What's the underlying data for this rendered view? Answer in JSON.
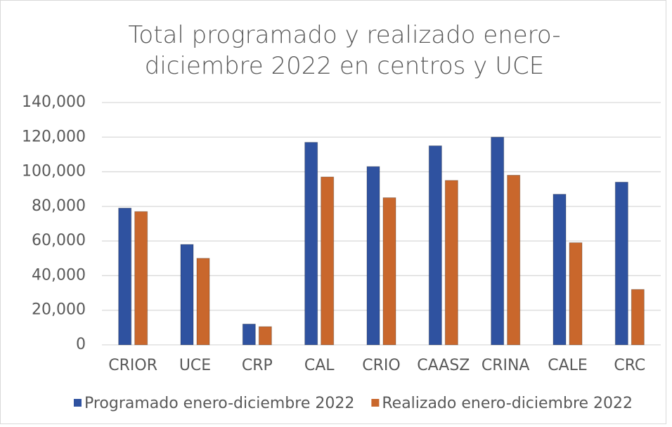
{
  "chart_data": {
    "type": "bar",
    "title": "Total programado y realizado enero-diciembre 2022 en centros y UCE",
    "categories": [
      "CRIOR",
      "UCE",
      "CRP",
      "CAL",
      "CRIO",
      "CAASZ",
      "CRINA",
      "CALE",
      "CRC"
    ],
    "series": [
      {
        "name": "Programado enero-diciembre 2022",
        "color": "#2f52a0",
        "values": [
          79000,
          58000,
          12000,
          117000,
          103000,
          115000,
          120000,
          87000,
          94000
        ]
      },
      {
        "name": "Realizado enero-diciembre 2022",
        "color": "#c9672c",
        "values": [
          77000,
          50000,
          10500,
          97000,
          85000,
          95000,
          98000,
          59000,
          32000
        ]
      }
    ],
    "ylim": [
      0,
      140000
    ],
    "yticks": [
      0,
      {
        "value": 20000,
        "label": "20,000"
      },
      {
        "value": 40000,
        "label": "40,000"
      },
      {
        "value": 60000,
        "label": "60,000"
      },
      {
        "value": 80000,
        "label": "80,000"
      },
      {
        "value": 100000,
        "label": "100,000"
      },
      {
        "value": 120000,
        "label": "120,000"
      },
      {
        "value": 140000,
        "label": "140,000"
      }
    ],
    "grid": true,
    "legend": "bottom"
  }
}
